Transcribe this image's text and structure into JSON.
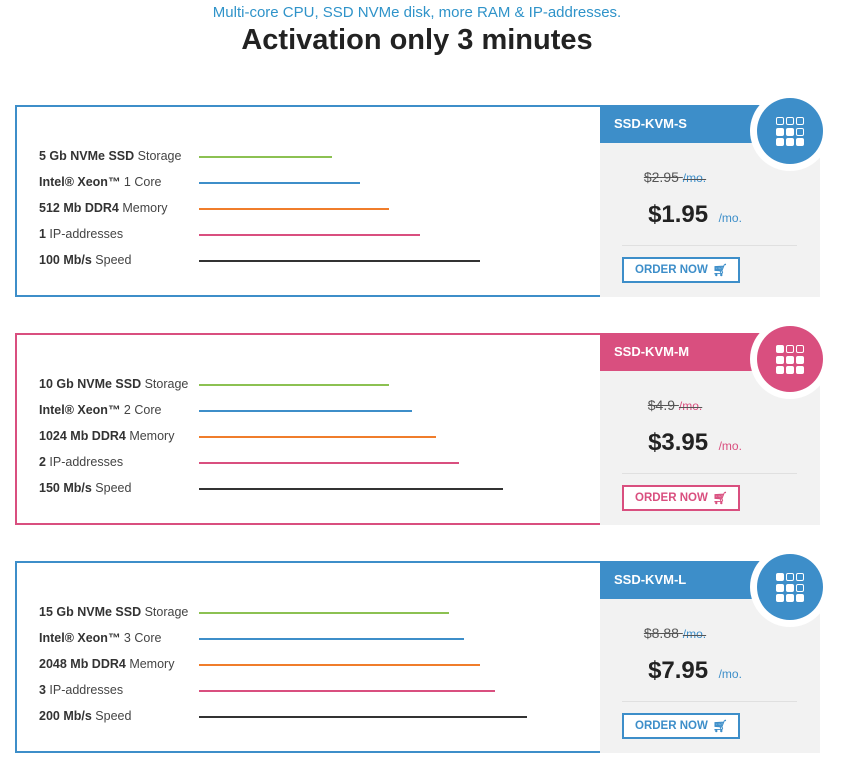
{
  "header": {
    "subtitle": "Multi-core CPU, SSD NVMe disk, more RAM & IP-addresses.",
    "title": "Activation only 3 minutes"
  },
  "colors": {
    "blue": "#3d8ec9",
    "pink": "#d94f7f",
    "bar_storage": "#8cc152",
    "bar_cpu": "#3d8ec9",
    "bar_memory": "#f07d2b",
    "bar_ip": "#d94f7f",
    "bar_speed": "#333333"
  },
  "plans": [
    {
      "name": "SSD-KVM-S",
      "specs": [
        {
          "value": "5 Gb NVMe SSD",
          "label": " Storage",
          "level": 0.51
        },
        {
          "value": "Intel® Xeon™",
          "label": " 1 Core",
          "level": 0.62
        },
        {
          "value": "512 Mb DDR4",
          "label": " Memory",
          "level": 0.73
        },
        {
          "value": "1",
          "label": " IP-addresses",
          "level": 0.85
        },
        {
          "value": "100 Mb/s",
          "label": " Speed",
          "level": 1.08
        }
      ],
      "old_price": "$2.95",
      "old_per": "/mo.",
      "price": "$1.95",
      "per": "/mo.",
      "order_label": "ORDER NOW",
      "cart_icon": "cart-icon"
    },
    {
      "name": "SSD-KVM-M",
      "specs": [
        {
          "value": "10 Gb NVMe SSD",
          "label": " Storage",
          "level": 0.73
        },
        {
          "value": "Intel® Xeon™",
          "label": " 2 Core",
          "level": 0.82
        },
        {
          "value": "1024 Mb DDR4",
          "label": " Memory",
          "level": 0.91
        },
        {
          "value": "2",
          "label": " IP-addresses",
          "level": 1.0
        },
        {
          "value": "150 Mb/s",
          "label": " Speed",
          "level": 1.17
        }
      ],
      "old_price": "$4.9",
      "old_per": "/mo.",
      "price": "$3.95",
      "per": "/mo.",
      "order_label": "ORDER NOW",
      "cart_icon": "cart-icon"
    },
    {
      "name": "SSD-KVM-L",
      "specs": [
        {
          "value": "15 Gb NVMe SSD",
          "label": " Storage",
          "level": 0.96
        },
        {
          "value": "Intel® Xeon™",
          "label": " 3 Core",
          "level": 1.02
        },
        {
          "value": "2048 Mb DDR4",
          "label": " Memory",
          "level": 1.08
        },
        {
          "value": "3",
          "label": " IP-addresses",
          "level": 1.14
        },
        {
          "value": "200 Mb/s",
          "label": " Speed",
          "level": 1.26
        }
      ],
      "old_price": "$8.88",
      "old_per": "/mo.",
      "price": "$7.95",
      "per": "/mo.",
      "order_label": "ORDER NOW",
      "cart_icon": "cart-icon"
    }
  ]
}
